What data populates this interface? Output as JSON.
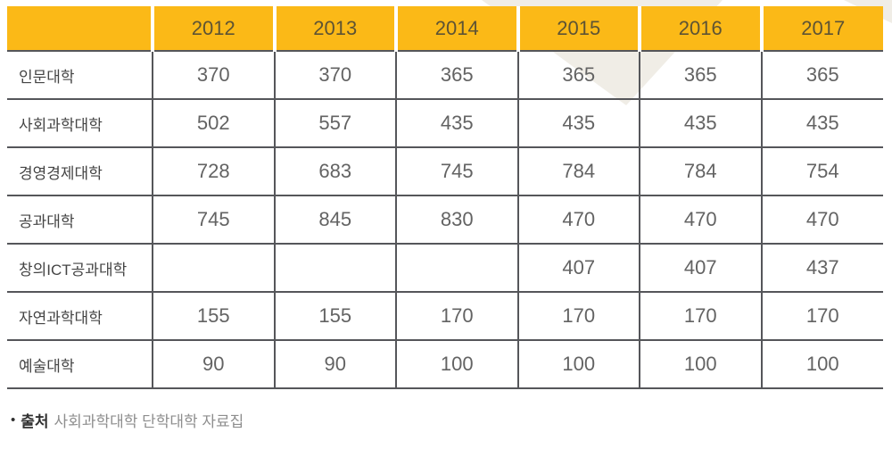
{
  "colors": {
    "header_yellow": "#FBB917",
    "header_text": "#5D5334",
    "border_gray": "#55565A",
    "value_text": "#636363",
    "label_text": "#444444",
    "watermark_beige": "#F0EDE6"
  },
  "table": {
    "corner_label": "",
    "years": [
      "2012",
      "2013",
      "2014",
      "2015",
      "2016",
      "2017"
    ],
    "rows": [
      {
        "label": "인문대학",
        "values": [
          "370",
          "370",
          "365",
          "365",
          "365",
          "365"
        ]
      },
      {
        "label": "사회과학대학",
        "values": [
          "502",
          "557",
          "435",
          "435",
          "435",
          "435"
        ]
      },
      {
        "label": "경영경제대학",
        "values": [
          "728",
          "683",
          "745",
          "784",
          "784",
          "754"
        ]
      },
      {
        "label": "공과대학",
        "values": [
          "745",
          "845",
          "830",
          "470",
          "470",
          "470"
        ]
      },
      {
        "label": "창의ICT공과대학",
        "values": [
          "",
          "",
          "",
          "407",
          "407",
          "437"
        ]
      },
      {
        "label": "자연과학대학",
        "values": [
          "155",
          "155",
          "170",
          "170",
          "170",
          "170"
        ]
      },
      {
        "label": "예술대학",
        "values": [
          "90",
          "90",
          "100",
          "100",
          "100",
          "100"
        ]
      }
    ]
  },
  "footer": {
    "bullet": "•",
    "source_label": "출처",
    "source_text": "사회과학대학 단학대학 자료집"
  }
}
